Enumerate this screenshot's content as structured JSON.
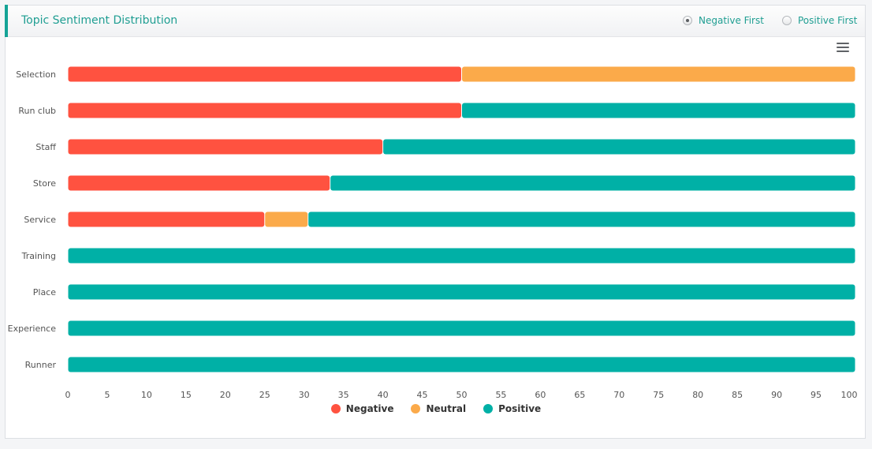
{
  "panel": {
    "title": "Topic Sentiment Distribution",
    "sort_options": [
      {
        "label": "Negative First",
        "checked": true
      },
      {
        "label": "Positive First",
        "checked": false
      }
    ]
  },
  "colors": {
    "negative": "#ff5240",
    "neutral": "#fbaa4a",
    "positive": "#00b0a6",
    "accent": "#14a396"
  },
  "chart_data": {
    "type": "bar",
    "orientation": "horizontal",
    "stacked": true,
    "categories": [
      "Selection",
      "Run club",
      "Staff",
      "Store",
      "Service",
      "Training",
      "Place",
      "Experience",
      "Runner"
    ],
    "series": [
      {
        "name": "Negative",
        "values": [
          50,
          50,
          40,
          33.3,
          25,
          0,
          0,
          0,
          0
        ]
      },
      {
        "name": "Neutral",
        "values": [
          50,
          0,
          0,
          0,
          5.5,
          0,
          0,
          0,
          0
        ]
      },
      {
        "name": "Positive",
        "values": [
          0,
          50,
          60,
          66.7,
          69.5,
          100,
          100,
          100,
          100
        ]
      }
    ],
    "xlim": [
      0,
      100
    ],
    "x_ticks": [
      "0",
      "5",
      "10",
      "15",
      "20",
      "25",
      "30",
      "35",
      "40",
      "45",
      "50",
      "55",
      "60",
      "65",
      "70",
      "75",
      "80",
      "85",
      "90",
      "95",
      "100"
    ],
    "grid": false,
    "legend_position": "bottom-center"
  }
}
